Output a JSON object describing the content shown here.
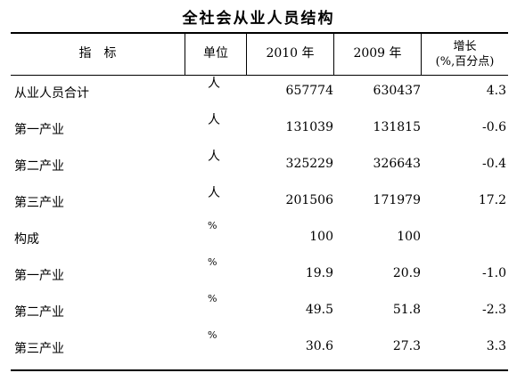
{
  "title": "全社会从业人员结构",
  "header": {
    "indicator": "指　标",
    "unit": "单位",
    "y2010": "2010 年",
    "y2009": "2009 年",
    "growth_line1": "增长",
    "growth_line2": "(%,百分点)"
  },
  "rows": [
    {
      "name": "从业人员合计",
      "unit": "人",
      "v2010": "657774",
      "v2009": "630437",
      "growth": "4.3"
    },
    {
      "name": "第一产业",
      "unit": "人",
      "v2010": "131039",
      "v2009": "131815",
      "growth": "-0.6"
    },
    {
      "name": "第二产业",
      "unit": "人",
      "v2010": "325229",
      "v2009": "326643",
      "growth": "-0.4"
    },
    {
      "name": "第三产业",
      "unit": "人",
      "v2010": "201506",
      "v2009": "171979",
      "growth": "17.2"
    },
    {
      "name": "构成",
      "unit": "%",
      "v2010": "100",
      "v2009": "100",
      "growth": ""
    },
    {
      "name": "第一产业",
      "unit": "%",
      "v2010": "19.9",
      "v2009": "20.9",
      "growth": "-1.0"
    },
    {
      "name": "第二产业",
      "unit": "%",
      "v2010": "49.5",
      "v2009": "51.8",
      "growth": "-2.3"
    },
    {
      "name": "第三产业",
      "unit": "%",
      "v2010": "30.6",
      "v2009": "27.3",
      "growth": "3.3"
    }
  ]
}
